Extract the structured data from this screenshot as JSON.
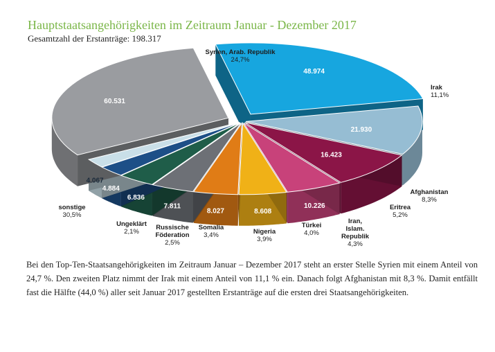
{
  "header": {
    "title": "Hauptstaatsangehörigkeiten im Zeitraum Januar - Dezember 2017",
    "subtitle": "Gesamtzahl der Erstanträge: 198.317"
  },
  "chart_data": {
    "type": "pie",
    "total": "198.317",
    "slices": [
      {
        "label": [
          "Syrien, Arab. Republik"
        ],
        "value": 48974,
        "value_text": "48.974",
        "percent": "24,7%",
        "color": "#17a6df"
      },
      {
        "label": [
          "Irak"
        ],
        "value": 21930,
        "value_text": "21.930",
        "percent": "11,1%",
        "color": "#96bdd3"
      },
      {
        "label": [
          "Afghanistan"
        ],
        "value": 16423,
        "value_text": "16.423",
        "percent": "8,3%",
        "color": "#8b1547"
      },
      {
        "label": [
          "Eritrea"
        ],
        "value": 10226,
        "value_text": "10.226",
        "percent": "5,2%",
        "color": "#c8427a"
      },
      {
        "label": [
          "Iran,",
          "Islam.",
          "Republik"
        ],
        "value": 8608,
        "value_text": "8.608",
        "percent": "4,3%",
        "color": "#f0b117"
      },
      {
        "label": [
          "Türkei"
        ],
        "value": 8027,
        "value_text": "8.027",
        "percent": "4,0%",
        "color": "#e07c16"
      },
      {
        "label": [
          "Nigeria"
        ],
        "value": 7811,
        "value_text": "7.811",
        "percent": "3,9%",
        "color": "#6d7076"
      },
      {
        "label": [
          "Somalia"
        ],
        "value": 6836,
        "value_text": "6.836",
        "percent": "3,4%",
        "color": "#1f5d49"
      },
      {
        "label": [
          "Russische",
          "Föderation"
        ],
        "value": 4884,
        "value_text": "4.884",
        "percent": "2,5%",
        "color": "#1d4f87"
      },
      {
        "label": [
          "Ungeklärt"
        ],
        "value": 4067,
        "value_text": "4.067",
        "percent": "2,1%",
        "color": "#c9dfe8"
      },
      {
        "label": [
          "sonstige"
        ],
        "value": 60531,
        "value_text": "60.531",
        "percent": "30,5%",
        "color": "#9a9ca0"
      }
    ]
  },
  "text": {
    "paragraph": "Bei den Top-Ten-Staatsangehörigkeiten im Zeitraum Januar – Dezember 2017 steht an erster Stelle Syrien mit einem Anteil von 24,7 %. Den zweiten Platz nimmt der Irak mit einem Anteil von 11,1 % ein. Danach folgt Afghanistan mit 8,3 %. Damit entfällt fast die Hälfte (44,0 %) aller seit Januar 2017 gestellten Erstanträge auf die ersten drei Staatsangehörigkeiten."
  }
}
